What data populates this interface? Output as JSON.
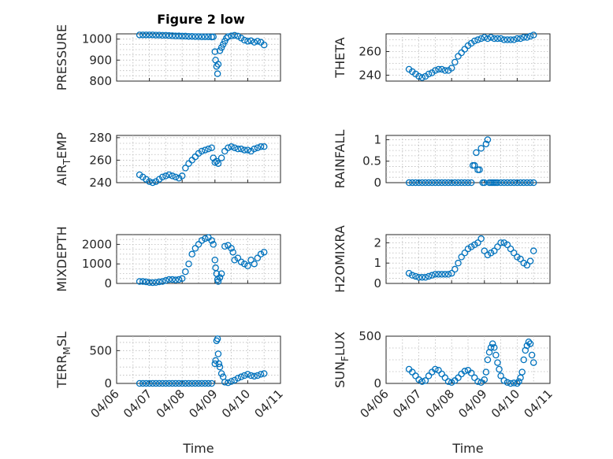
{
  "figure": {
    "title": "Figure 2 low",
    "marker_color": "#0072BD",
    "background": "#ffffff"
  },
  "chart_data": [
    {
      "type": "scatter",
      "id": "pressure",
      "ylabel": "PRESSURE",
      "ylim": [
        800,
        1025
      ],
      "yticks": [
        800,
        900,
        1000
      ],
      "ytick_labels": [
        "800",
        "900",
        "1000"
      ],
      "xlim": [
        0,
        5
      ],
      "xticks": [
        0,
        1,
        2,
        3,
        4,
        5
      ],
      "show_xticklabels": false,
      "grid": true,
      "x": [
        0.7,
        0.8,
        0.9,
        1.0,
        1.1,
        1.2,
        1.3,
        1.4,
        1.5,
        1.6,
        1.7,
        1.8,
        1.9,
        2.0,
        2.1,
        2.2,
        2.3,
        2.4,
        2.5,
        2.6,
        2.7,
        2.8,
        2.9,
        2.95,
        3.0,
        3.02,
        3.05,
        3.08,
        3.1,
        3.15,
        3.2,
        3.25,
        3.3,
        3.35,
        3.4,
        3.5,
        3.6,
        3.7,
        3.8,
        3.9,
        4.0,
        4.1,
        4.2,
        4.3,
        4.4,
        4.5
      ],
      "y": [
        1020,
        1020,
        1020,
        1020,
        1020,
        1019,
        1019,
        1018,
        1018,
        1017,
        1016,
        1015,
        1015,
        1014,
        1014,
        1013,
        1013,
        1012,
        1012,
        1011,
        1011,
        1011,
        1010,
        1011,
        940,
        900,
        870,
        835,
        880,
        945,
        960,
        975,
        990,
        1005,
        1012,
        1015,
        1018,
        1014,
        1005,
        995,
        990,
        992,
        985,
        990,
        985,
        972
      ]
    },
    {
      "type": "scatter",
      "id": "theta",
      "ylabel": "THETA",
      "ylim": [
        235,
        275
      ],
      "yticks": [
        240,
        260
      ],
      "ytick_labels": [
        "240",
        "260"
      ],
      "xlim": [
        0,
        5
      ],
      "xticks": [
        0,
        1,
        2,
        3,
        4,
        5
      ],
      "show_xticklabels": false,
      "grid": true,
      "x": [
        0.7,
        0.8,
        0.9,
        1.0,
        1.1,
        1.2,
        1.3,
        1.4,
        1.5,
        1.6,
        1.7,
        1.8,
        1.9,
        2.0,
        2.1,
        2.2,
        2.3,
        2.4,
        2.5,
        2.6,
        2.7,
        2.8,
        2.9,
        3.0,
        3.1,
        3.2,
        3.3,
        3.4,
        3.5,
        3.6,
        3.7,
        3.8,
        3.9,
        4.0,
        4.1,
        4.2,
        4.3,
        4.4,
        4.5
      ],
      "y": [
        245,
        243,
        241,
        239,
        238,
        239,
        241,
        242,
        244,
        245,
        245,
        244,
        244,
        246,
        251,
        256,
        259,
        262,
        265,
        267,
        269,
        270,
        271,
        272,
        271,
        272,
        271,
        271,
        271,
        270,
        270,
        270,
        270,
        271,
        271,
        272,
        272,
        273,
        274
      ]
    },
    {
      "type": "scatter",
      "id": "air-temp",
      "ylabel": "AIR_TEMP",
      "ylabel_main": "AIR",
      "ylabel_sub": "T",
      "ylabel_rest": "EMP",
      "ylim": [
        240,
        282
      ],
      "yticks": [
        240,
        260,
        280
      ],
      "ytick_labels": [
        "240",
        "260",
        "280"
      ],
      "xlim": [
        0,
        5
      ],
      "xticks": [
        0,
        1,
        2,
        3,
        4,
        5
      ],
      "show_xticklabels": false,
      "grid": true,
      "x": [
        0.7,
        0.8,
        0.9,
        1.0,
        1.1,
        1.2,
        1.3,
        1.4,
        1.5,
        1.6,
        1.7,
        1.8,
        1.9,
        2.0,
        2.1,
        2.2,
        2.3,
        2.4,
        2.5,
        2.6,
        2.7,
        2.8,
        2.9,
        2.95,
        3.0,
        3.05,
        3.1,
        3.2,
        3.3,
        3.4,
        3.5,
        3.6,
        3.7,
        3.8,
        3.9,
        4.0,
        4.1,
        4.2,
        4.3,
        4.4,
        4.5
      ],
      "y": [
        247,
        245,
        243,
        241,
        240,
        241,
        243,
        245,
        246,
        247,
        246,
        245,
        244,
        246,
        253,
        257,
        260,
        263,
        266,
        268,
        269,
        270,
        271,
        262,
        258,
        259,
        257,
        262,
        268,
        271,
        272,
        271,
        270,
        270,
        269,
        269,
        268,
        270,
        271,
        272,
        272
      ]
    },
    {
      "type": "scatter",
      "id": "rainfall",
      "ylabel": "RAINFALL",
      "ylim": [
        0,
        1.1
      ],
      "yticks": [
        0,
        0.5,
        1
      ],
      "ytick_labels": [
        "0",
        "0.5",
        "1"
      ],
      "xlim": [
        0,
        5
      ],
      "xticks": [
        0,
        1,
        2,
        3,
        4,
        5
      ],
      "show_xticklabels": false,
      "grid": true,
      "x": [
        0.7,
        0.8,
        0.9,
        1.0,
        1.1,
        1.2,
        1.3,
        1.4,
        1.5,
        1.6,
        1.7,
        1.8,
        1.9,
        2.0,
        2.1,
        2.2,
        2.3,
        2.4,
        2.5,
        2.6,
        2.65,
        2.7,
        2.75,
        2.8,
        2.85,
        2.9,
        2.95,
        3.0,
        3.05,
        3.1,
        3.15,
        3.2,
        3.25,
        3.3,
        3.35,
        3.4,
        3.5,
        3.6,
        3.7,
        3.8,
        3.9,
        4.0,
        4.1,
        4.2,
        4.3,
        4.4,
        4.5
      ],
      "y": [
        0,
        0,
        0,
        0,
        0,
        0,
        0,
        0,
        0,
        0,
        0,
        0,
        0,
        0,
        0,
        0,
        0,
        0,
        0,
        0,
        0.4,
        0.4,
        0.7,
        0.3,
        0.3,
        0.8,
        0,
        0,
        0.9,
        1.0,
        0,
        0,
        0,
        0,
        0,
        0,
        0,
        0,
        0,
        0,
        0,
        0,
        0,
        0,
        0,
        0,
        0
      ]
    },
    {
      "type": "scatter",
      "id": "mixdepth",
      "ylabel": "MIXDEPTH",
      "ylim": [
        0,
        2500
      ],
      "yticks": [
        0,
        1000,
        2000
      ],
      "ytick_labels": [
        "0",
        "1000",
        "2000"
      ],
      "xlim": [
        0,
        5
      ],
      "xticks": [
        0,
        1,
        2,
        3,
        4,
        5
      ],
      "show_xticklabels": false,
      "grid": true,
      "x": [
        0.7,
        0.8,
        0.9,
        1.0,
        1.1,
        1.2,
        1.3,
        1.4,
        1.5,
        1.6,
        1.7,
        1.8,
        1.9,
        2.0,
        2.1,
        2.2,
        2.3,
        2.4,
        2.5,
        2.6,
        2.7,
        2.8,
        2.9,
        2.95,
        3.0,
        3.02,
        3.05,
        3.08,
        3.1,
        3.15,
        3.2,
        3.3,
        3.4,
        3.5,
        3.55,
        3.6,
        3.7,
        3.8,
        3.9,
        4.0,
        4.1,
        4.2,
        4.3,
        4.4,
        4.5
      ],
      "y": [
        100,
        100,
        80,
        50,
        40,
        50,
        80,
        100,
        150,
        200,
        200,
        180,
        200,
        250,
        600,
        1000,
        1500,
        1800,
        2000,
        2200,
        2300,
        2350,
        2200,
        2000,
        1200,
        800,
        500,
        200,
        100,
        300,
        500,
        1900,
        1950,
        1800,
        1600,
        1200,
        1300,
        1100,
        1000,
        900,
        1200,
        1000,
        1300,
        1500,
        1600
      ]
    },
    {
      "type": "scatter",
      "id": "h2omixra",
      "ylabel": "H2OMIXRA",
      "ylim": [
        0,
        2.4
      ],
      "yticks": [
        0,
        1,
        2
      ],
      "ytick_labels": [
        "0",
        "1",
        "2"
      ],
      "xlim": [
        0,
        5
      ],
      "xticks": [
        0,
        1,
        2,
        3,
        4,
        5
      ],
      "show_xticklabels": false,
      "grid": true,
      "x": [
        0.7,
        0.8,
        0.9,
        1.0,
        1.1,
        1.2,
        1.3,
        1.4,
        1.5,
        1.6,
        1.7,
        1.8,
        1.9,
        2.0,
        2.1,
        2.2,
        2.3,
        2.4,
        2.5,
        2.6,
        2.7,
        2.8,
        2.9,
        3.0,
        3.1,
        3.2,
        3.3,
        3.4,
        3.5,
        3.6,
        3.7,
        3.8,
        3.9,
        4.0,
        4.1,
        4.2,
        4.3,
        4.4,
        4.5
      ],
      "y": [
        0.5,
        0.4,
        0.35,
        0.3,
        0.3,
        0.3,
        0.35,
        0.4,
        0.45,
        0.45,
        0.45,
        0.45,
        0.45,
        0.5,
        0.7,
        1.0,
        1.3,
        1.5,
        1.7,
        1.8,
        1.9,
        2.0,
        2.2,
        1.6,
        1.4,
        1.5,
        1.6,
        1.8,
        2.0,
        2.0,
        1.9,
        1.7,
        1.5,
        1.3,
        1.2,
        1.0,
        0.9,
        1.1,
        1.6
      ]
    },
    {
      "type": "scatter",
      "id": "terr-msl",
      "ylabel": "TERR_MSL",
      "ylabel_main": "TERR",
      "ylabel_sub": "M",
      "ylabel_rest": "SL",
      "ylim": [
        0,
        720
      ],
      "yticks": [
        0,
        500
      ],
      "ytick_labels": [
        "0",
        "500"
      ],
      "xlim": [
        0,
        5
      ],
      "xticks": [
        0,
        1,
        2,
        3,
        4,
        5
      ],
      "xtick_labels": [
        "04/06",
        "04/07",
        "04/08",
        "04/09",
        "04/10",
        "04/11"
      ],
      "show_xticklabels": true,
      "xlabel": "Time",
      "grid": true,
      "x": [
        0.7,
        0.8,
        0.9,
        1.0,
        1.1,
        1.2,
        1.3,
        1.4,
        1.5,
        1.6,
        1.7,
        1.8,
        1.9,
        2.0,
        2.1,
        2.2,
        2.3,
        2.4,
        2.5,
        2.6,
        2.7,
        2.8,
        2.9,
        3.0,
        3.02,
        3.05,
        3.08,
        3.1,
        3.12,
        3.15,
        3.2,
        3.25,
        3.3,
        3.4,
        3.5,
        3.6,
        3.7,
        3.8,
        3.9,
        4.0,
        4.1,
        4.2,
        4.3,
        4.4,
        4.5
      ],
      "y": [
        0,
        0,
        0,
        0,
        0,
        0,
        0,
        0,
        0,
        0,
        0,
        0,
        0,
        0,
        0,
        0,
        0,
        0,
        0,
        0,
        0,
        0,
        0,
        300,
        350,
        650,
        680,
        450,
        300,
        250,
        150,
        100,
        20,
        10,
        30,
        50,
        80,
        100,
        120,
        140,
        120,
        110,
        120,
        140,
        150
      ]
    },
    {
      "type": "scatter",
      "id": "sun-flux",
      "ylabel": "SUN_FLUX",
      "ylabel_main": "SUN",
      "ylabel_sub": "F",
      "ylabel_rest": "LUX",
      "ylim": [
        0,
        500
      ],
      "yticks": [
        0,
        500
      ],
      "ytick_labels": [
        "0",
        "500"
      ],
      "xlim": [
        0,
        5
      ],
      "xticks": [
        0,
        1,
        2,
        3,
        4,
        5
      ],
      "xtick_labels": [
        "04/06",
        "04/07",
        "04/08",
        "04/09",
        "04/10",
        "04/11"
      ],
      "show_xticklabels": true,
      "xlabel": "Time",
      "grid": true,
      "x": [
        0.7,
        0.8,
        0.9,
        1.0,
        1.1,
        1.2,
        1.3,
        1.4,
        1.5,
        1.6,
        1.7,
        1.8,
        1.9,
        2.0,
        2.1,
        2.2,
        2.3,
        2.4,
        2.5,
        2.6,
        2.7,
        2.8,
        2.9,
        3.0,
        3.05,
        3.1,
        3.15,
        3.2,
        3.25,
        3.3,
        3.35,
        3.4,
        3.45,
        3.5,
        3.6,
        3.7,
        3.8,
        3.9,
        4.0,
        4.05,
        4.1,
        4.15,
        4.2,
        4.25,
        4.3,
        4.35,
        4.4,
        4.45,
        4.5
      ],
      "y": [
        150,
        120,
        80,
        40,
        20,
        30,
        80,
        120,
        150,
        140,
        100,
        60,
        20,
        10,
        30,
        60,
        100,
        130,
        140,
        110,
        60,
        20,
        10,
        40,
        120,
        250,
        330,
        380,
        420,
        380,
        300,
        220,
        150,
        80,
        30,
        10,
        0,
        5,
        0,
        20,
        60,
        120,
        250,
        350,
        400,
        440,
        420,
        300,
        220
      ]
    }
  ]
}
